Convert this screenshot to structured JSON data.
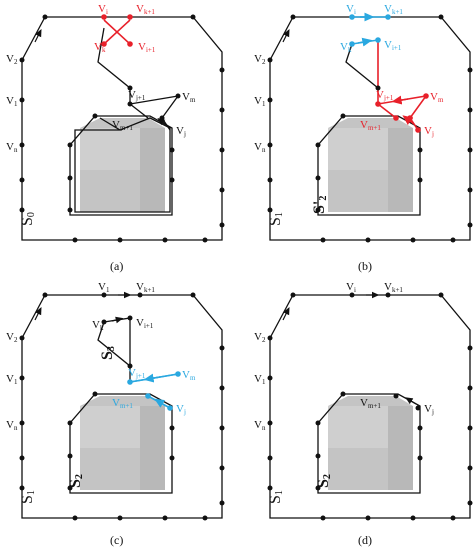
{
  "colors": {
    "line": "#111111",
    "highlight_red": "#e8202a",
    "highlight_blue": "#2aa8e0",
    "building_fill": "#c8c8c8",
    "building_fill_dark": "#b4b4b4"
  },
  "panels": [
    {
      "caption": "(a)",
      "labels": {
        "v1": "V",
        "v1_sub": "1",
        "v2": "V",
        "v2_sub": "2",
        "vn": "V",
        "vn_sub": "n",
        "vi": "V",
        "vi_sub": "i",
        "vk1": "V",
        "vk1_sub": "k+1",
        "vk": "V",
        "vk_sub": "k",
        "vi1": "V",
        "vi1_sub": "i+1",
        "vj1": "V",
        "vj1_sub": "j+1",
        "vm": "V",
        "vm_sub": "m",
        "vm1": "V",
        "vm1_sub": "m+1",
        "vj": "V",
        "vj_sub": "j",
        "s": "S",
        "s_sub": "0"
      }
    },
    {
      "caption": "(b)",
      "labels": {
        "v1": "V",
        "v1_sub": "1",
        "v2": "V",
        "v2_sub": "2",
        "vn": "V",
        "vn_sub": "n",
        "vi": "V",
        "vi_sub": "i",
        "vk1": "V",
        "vk1_sub": "k+1",
        "vk": "V",
        "vk_sub": "k",
        "vi1": "V",
        "vi1_sub": "i+1",
        "vj1": "V",
        "vj1_sub": "j+1",
        "vm": "V",
        "vm_sub": "m",
        "vm1": "V",
        "vm1_sub": "m+1",
        "vj": "V",
        "vj_sub": "j",
        "s": "S",
        "s_sub": "1",
        "s2": "S'",
        "s2_sub": "2"
      }
    },
    {
      "caption": "(c)",
      "labels": {
        "v1": "V",
        "v1_sub": "1",
        "v2": "V",
        "v2_sub": "2",
        "vn": "V",
        "vn_sub": "n",
        "vi": "V",
        "vi_sub": "1",
        "vk1": "V",
        "vk1_sub": "k+1",
        "vk": "V",
        "vk_sub": "k",
        "vi1": "V",
        "vi1_sub": "i+1",
        "vj1": "V",
        "vj1_sub": "j+1",
        "vm": "V",
        "vm_sub": "m",
        "vm1": "V",
        "vm1_sub": "m+1",
        "vj": "V",
        "vj_sub": "j",
        "s": "S",
        "s_sub": "1",
        "s2": "S",
        "s2_sub": "2",
        "s3": "S",
        "s3_sub": "3"
      }
    },
    {
      "caption": "(d)",
      "labels": {
        "v1": "V",
        "v1_sub": "1",
        "v2": "V",
        "v2_sub": "2",
        "vn": "V",
        "vn_sub": "n",
        "vi": "V",
        "vi_sub": "i",
        "vk1": "V",
        "vk1_sub": "k+1",
        "vm1": "V",
        "vm1_sub": "m+1",
        "vj": "V",
        "vj_sub": "j",
        "s": "S",
        "s_sub": "1",
        "s2": "S",
        "s2_sub": "2"
      }
    }
  ]
}
